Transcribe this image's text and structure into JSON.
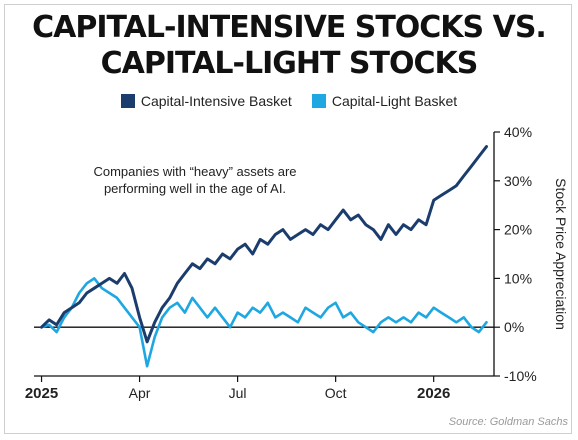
{
  "title_line1": "CAPITAL-INTENSIVE STOCKS VS.",
  "title_line2": "CAPITAL-LIGHT STOCKS",
  "annotation_line1": "Companies with “heavy” assets are",
  "annotation_line2": "performing well in the age of AI.",
  "source": "Source: Goldman Sachs",
  "colors": {
    "capital_intensive": "#1b3d6e",
    "capital_light": "#1ea7e1",
    "axis": "#111111",
    "zero_line": "#111111"
  },
  "chart_data": {
    "type": "line",
    "title": "CAPITAL-INTENSIVE STOCKS VS. CAPITAL-LIGHT STOCKS",
    "xlabel": "",
    "ylabel": "Stock Price Appreciation",
    "y_axis_side": "right",
    "x_tick_labels": [
      "2025",
      "Apr",
      "Jul",
      "Oct",
      "2026"
    ],
    "x_tick_weeks": [
      0,
      13,
      26,
      39,
      52
    ],
    "x_range_weeks": [
      -1,
      60
    ],
    "y_tick_labels": [
      "40%",
      "30%",
      "20%",
      "10%",
      "0%",
      "-10%"
    ],
    "y_tick_values": [
      40,
      30,
      20,
      10,
      0,
      -10
    ],
    "ylim": [
      -10,
      40
    ],
    "legend": "top-center",
    "grid": false,
    "x_unit": "weeks from start of 2025",
    "series": [
      {
        "name": "Capital-Intensive Basket",
        "x": [
          0,
          1,
          2,
          3,
          4,
          5,
          6,
          7,
          8,
          9,
          10,
          11,
          12,
          13,
          14,
          15,
          16,
          17,
          18,
          19,
          20,
          21,
          22,
          23,
          24,
          25,
          26,
          27,
          28,
          29,
          30,
          31,
          32,
          33,
          34,
          35,
          36,
          37,
          38,
          39,
          40,
          41,
          42,
          43,
          44,
          45,
          46,
          47,
          48,
          49,
          50,
          51,
          52,
          53,
          54,
          55,
          56,
          57,
          58,
          59
        ],
        "values": [
          0,
          1.5,
          0.5,
          3,
          4,
          5,
          7,
          8,
          9,
          10,
          9,
          11,
          8,
          2,
          -3,
          1,
          4,
          6,
          9,
          11,
          13,
          12,
          14,
          13,
          15,
          14,
          16,
          17,
          15,
          18,
          17,
          19,
          20,
          18,
          19,
          20,
          19,
          21,
          20,
          22,
          24,
          22,
          23,
          21,
          20,
          18,
          21,
          19,
          21,
          20,
          22,
          21,
          26,
          27,
          28,
          29,
          31,
          33,
          35,
          37
        ]
      },
      {
        "name": "Capital-Light Basket",
        "x": [
          0,
          1,
          2,
          3,
          4,
          5,
          6,
          7,
          8,
          9,
          10,
          11,
          12,
          13,
          14,
          15,
          16,
          17,
          18,
          19,
          20,
          21,
          22,
          23,
          24,
          25,
          26,
          27,
          28,
          29,
          30,
          31,
          32,
          33,
          34,
          35,
          36,
          37,
          38,
          39,
          40,
          41,
          42,
          43,
          44,
          45,
          46,
          47,
          48,
          49,
          50,
          51,
          52,
          53,
          54,
          55,
          56,
          57,
          58,
          59
        ],
        "values": [
          0,
          0.5,
          -1,
          2,
          4,
          7,
          9,
          10,
          8,
          7,
          6,
          4,
          2,
          0,
          -8,
          -2,
          2,
          4,
          5,
          3,
          6,
          4,
          2,
          4,
          2,
          0,
          3,
          2,
          4,
          3,
          5,
          2,
          3,
          2,
          1,
          4,
          3,
          2,
          4,
          5,
          2,
          3,
          1,
          0,
          -1,
          1,
          2,
          1,
          2,
          1,
          3,
          2,
          4,
          3,
          2,
          1,
          2,
          0,
          -1,
          1
        ]
      }
    ]
  }
}
